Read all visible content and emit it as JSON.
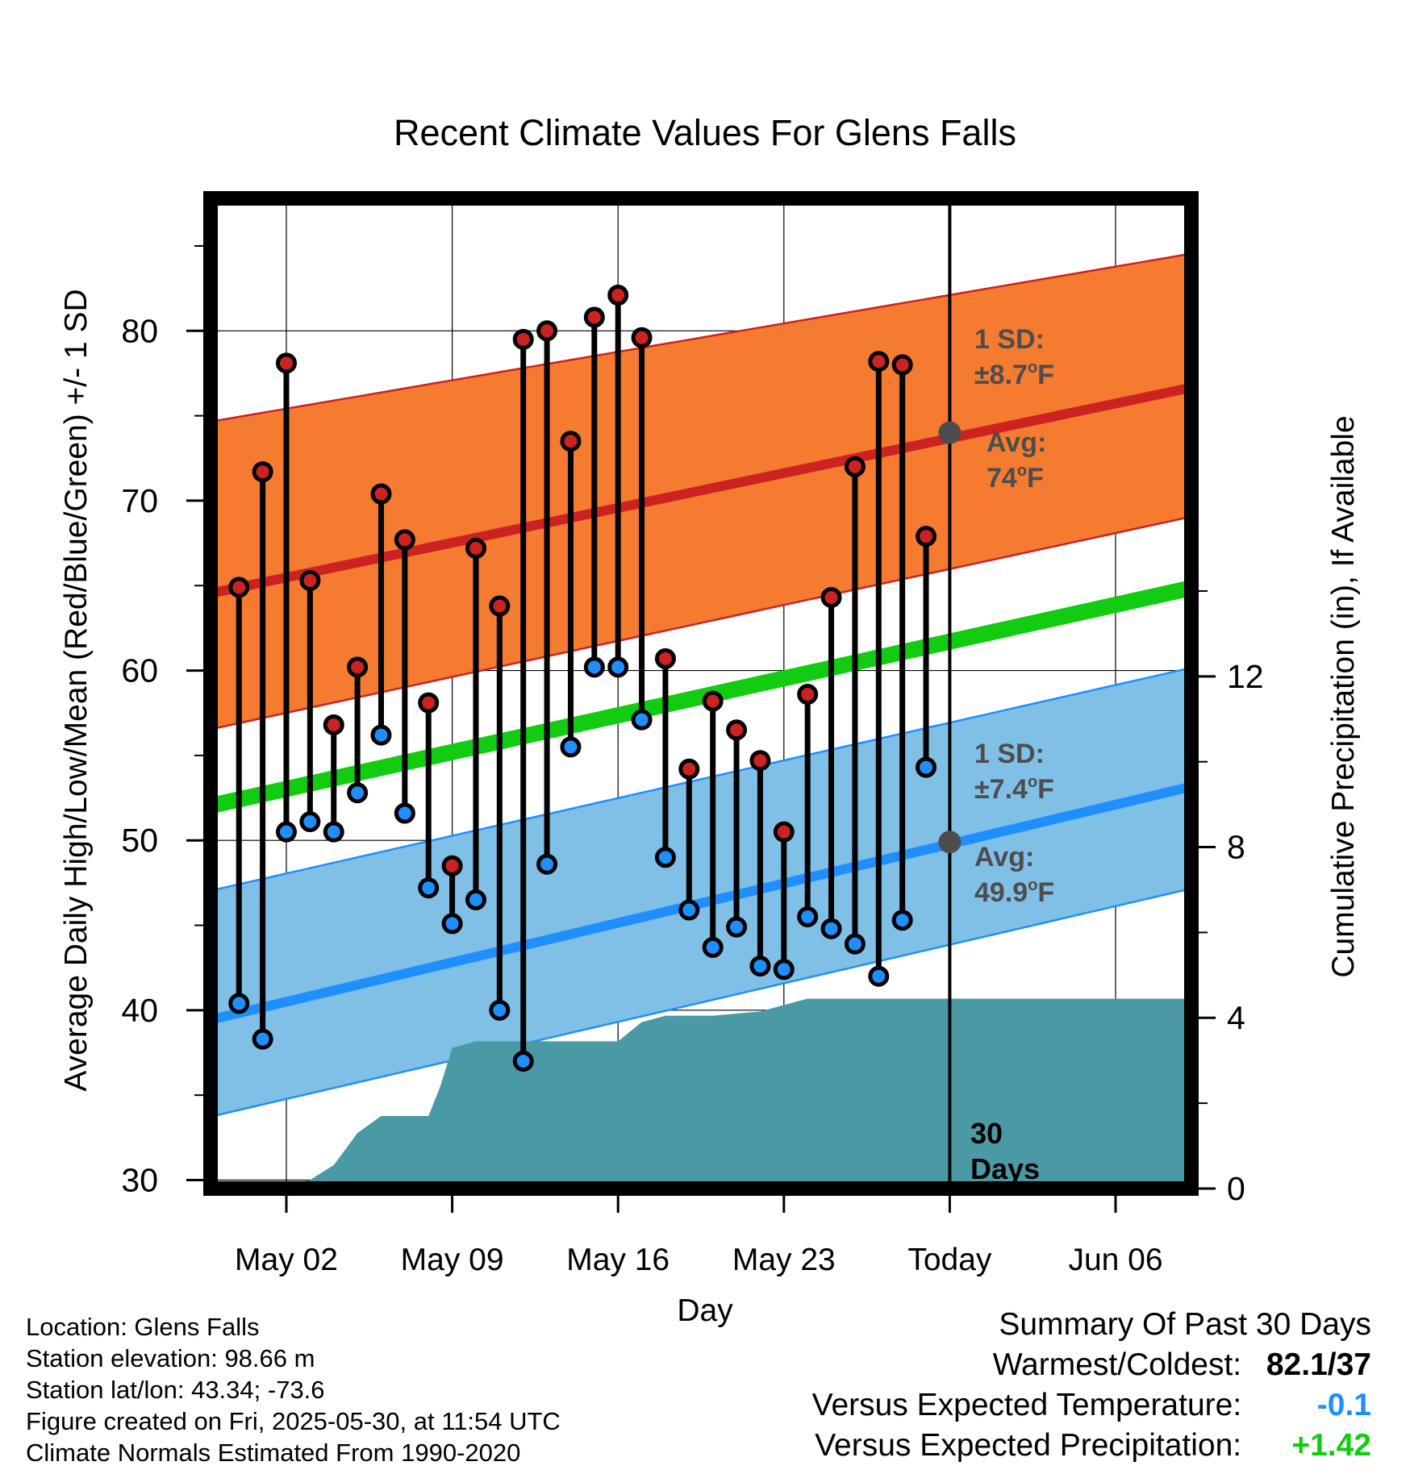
{
  "chart_data": {
    "type": "line",
    "title": "Recent Climate Values For Glens Falls",
    "xlabel": "Day",
    "ylabel": "Average Daily High/Low/Mean (Red/Blue/Green) +/- 1 SD",
    "y2label": "Cumulative Precipitation (in), If Available",
    "x_ticks": [
      "May 02",
      "May 09",
      "May 16",
      "May 23",
      "Today",
      "Jun 06"
    ],
    "x_tick_days": [
      3,
      10,
      17,
      24,
      31,
      38
    ],
    "xlim_days": [
      -0.2,
      41.2
    ],
    "y_ticks": [
      30,
      40,
      50,
      60,
      70,
      80
    ],
    "ylim": [
      29.5,
      87.8
    ],
    "y2_ticks": [
      0,
      4,
      8,
      12
    ],
    "y2lim": [
      0,
      23.2
    ],
    "grid": true,
    "today_day": 31,
    "today_label_line1": "30",
    "today_label_line2": "Days",
    "colors": {
      "high_band": "#f47b30",
      "high_edge": "#cc2222",
      "high_avg": "#cc2222",
      "low_band": "#80c0e6",
      "low_edge": "#1f8fff",
      "low_avg": "#1f8fff",
      "mean_avg": "#11cc11",
      "precip": "#4a9aa5",
      "high_marker": "#cc2222",
      "low_marker": "#1f8fff",
      "avg_dot": "#4d4d4d",
      "annotation_text": "#4d4d4d"
    },
    "normal_high": {
      "x": [
        0,
        41
      ],
      "avg": [
        64.6,
        76.6
      ],
      "sd_lower": [
        56.6,
        69.0
      ],
      "sd_upper": [
        74.7,
        84.5
      ]
    },
    "normal_low": {
      "x": [
        0,
        41
      ],
      "avg": [
        39.5,
        53.1
      ],
      "sd_lower": [
        33.8,
        47.1
      ],
      "sd_upper": [
        47.1,
        60.1
      ]
    },
    "normal_mean": {
      "x": [
        0,
        41
      ],
      "avg": [
        52.1,
        64.8
      ]
    },
    "daily": {
      "days": [
        1,
        2,
        3,
        4,
        5,
        6,
        7,
        8,
        9,
        10,
        11,
        12,
        13,
        14,
        15,
        16,
        17,
        18,
        19,
        20,
        21,
        22,
        23,
        24,
        25,
        26,
        27,
        28,
        29,
        30
      ],
      "highs": [
        64.9,
        71.7,
        78.1,
        65.3,
        56.8,
        60.2,
        70.4,
        67.7,
        58.1,
        48.5,
        67.2,
        63.8,
        79.5,
        80.0,
        73.5,
        80.8,
        82.1,
        79.6,
        60.7,
        54.2,
        58.2,
        56.5,
        54.7,
        50.5,
        58.6,
        64.3,
        72.0,
        78.2,
        78.0,
        67.9
      ],
      "lows": [
        40.4,
        38.3,
        50.5,
        51.1,
        50.5,
        52.8,
        56.2,
        51.6,
        47.2,
        45.1,
        46.5,
        40.0,
        37.0,
        48.6,
        55.5,
        60.2,
        60.2,
        57.1,
        49.0,
        45.9,
        43.7,
        44.9,
        42.6,
        42.4,
        45.5,
        44.8,
        43.9,
        42.0,
        45.3,
        54.3
      ]
    },
    "precip": {
      "days": [
        2.5,
        3,
        4,
        5,
        6,
        7,
        8,
        9,
        9.5,
        10,
        11,
        12,
        13,
        14,
        15,
        16,
        17,
        18,
        19,
        20,
        21,
        22,
        23,
        24,
        25,
        26,
        27,
        28,
        29,
        30,
        31,
        41
      ],
      "cumulative": [
        0,
        0.05,
        0.2,
        0.55,
        1.3,
        1.7,
        1.7,
        1.7,
        2.4,
        3.3,
        3.45,
        3.45,
        3.45,
        3.45,
        3.45,
        3.45,
        3.45,
        3.9,
        4.05,
        4.05,
        4.05,
        4.1,
        4.15,
        4.3,
        4.45,
        4.45,
        4.45,
        4.45,
        4.45,
        4.45,
        4.45,
        4.45
      ]
    },
    "annotations": {
      "high_sd_label": "1 SD:",
      "high_sd_value": "±8.7",
      "high_avg_label": "Avg:",
      "high_avg_value": "74",
      "low_sd_label": "1 SD:",
      "low_sd_value": "±7.4",
      "low_avg_label": "Avg:",
      "low_avg_value": "49.9",
      "degree_mark": "o",
      "unit": "F",
      "high_avg_today": 74.0,
      "low_avg_today": 49.9
    }
  },
  "footer": {
    "location": "Location: Glens Falls",
    "elevation": "Station elevation: 98.66 m",
    "latlon": "Station lat/lon: 43.34; -73.6",
    "created": "Figure created on Fri, 2025-05-30, at 11:54 UTC",
    "normals": "Climate Normals Estimated From 1990-2020"
  },
  "summary": {
    "title": "Summary Of Past 30 Days",
    "warmest_label": "Warmest/Coldest:",
    "warmest_value": "82.1",
    "slash": "/",
    "coldest_value": "37",
    "temp_label": "Versus Expected Temperature:",
    "temp_value": "-0.1",
    "temp_color": "#1f8fff",
    "precip_label": "Versus Expected Precipitation:",
    "precip_value": "+1.42",
    "precip_color": "#11cc11"
  }
}
